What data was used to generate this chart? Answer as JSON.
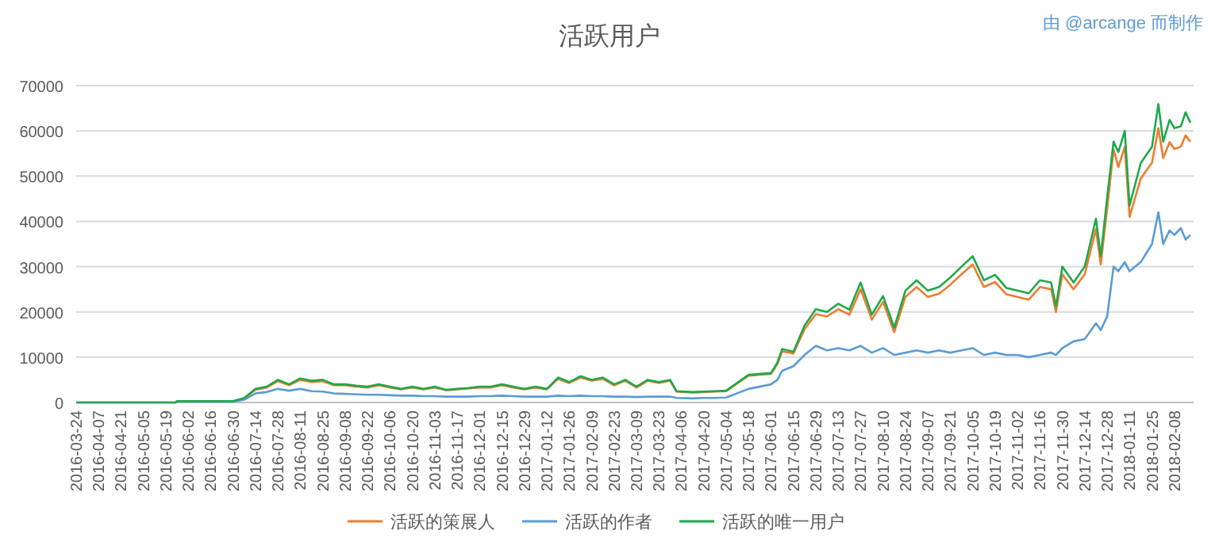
{
  "chart_data": {
    "type": "line",
    "title": "活跃用户",
    "annotations": [
      "由 @arcange 而制作"
    ],
    "x": [
      "2016-03-24",
      "2016-05-25",
      "2016-05-26",
      "2016-06-30",
      "2016-07-07",
      "2016-07-14",
      "2016-07-21",
      "2016-07-28",
      "2016-08-04",
      "2016-08-11",
      "2016-08-18",
      "2016-08-25",
      "2016-09-01",
      "2016-09-08",
      "2016-09-15",
      "2016-09-22",
      "2016-09-29",
      "2016-10-06",
      "2016-10-13",
      "2016-10-20",
      "2016-10-27",
      "2016-11-03",
      "2016-11-10",
      "2016-11-17",
      "2016-11-24",
      "2016-12-01",
      "2016-12-08",
      "2016-12-15",
      "2016-12-22",
      "2016-12-29",
      "2017-01-05",
      "2017-01-12",
      "2017-01-19",
      "2017-01-26",
      "2017-02-02",
      "2017-02-09",
      "2017-02-16",
      "2017-02-23",
      "2017-03-02",
      "2017-03-09",
      "2017-03-16",
      "2017-03-23",
      "2017-03-30",
      "2017-04-03",
      "2017-04-13",
      "2017-04-20",
      "2017-04-27",
      "2017-05-04",
      "2017-05-18",
      "2017-06-01",
      "2017-06-05",
      "2017-06-08",
      "2017-06-15",
      "2017-06-22",
      "2017-06-29",
      "2017-07-06",
      "2017-07-13",
      "2017-07-20",
      "2017-07-27",
      "2017-08-03",
      "2017-08-10",
      "2017-08-17",
      "2017-08-24",
      "2017-08-31",
      "2017-09-07",
      "2017-09-14",
      "2017-09-21",
      "2017-09-28",
      "2017-10-05",
      "2017-10-12",
      "2017-10-19",
      "2017-10-26",
      "2017-11-02",
      "2017-11-09",
      "2017-11-16",
      "2017-11-23",
      "2017-11-26",
      "2017-11-30",
      "2017-12-07",
      "2017-12-14",
      "2017-12-21",
      "2017-12-24",
      "2017-12-28",
      "2018-01-01",
      "2018-01-04",
      "2018-01-08",
      "2018-01-11",
      "2018-01-18",
      "2018-01-25",
      "2018-01-29",
      "2018-02-01",
      "2018-02-05",
      "2018-02-08",
      "2018-02-12",
      "2018-02-15",
      "2018-02-18"
    ],
    "series": [
      {
        "name": "活跃的策展人",
        "color": "#ed7d31",
        "values": [
          null,
          null,
          null,
          null,
          900,
          2800,
          3300,
          4700,
          3800,
          5000,
          4500,
          4700,
          3800,
          3800,
          3500,
          3300,
          3800,
          3300,
          2900,
          3300,
          2900,
          3300,
          2700,
          2900,
          3100,
          3300,
          3300,
          3800,
          3300,
          2900,
          3300,
          2900,
          5200,
          4300,
          5500,
          4800,
          5200,
          3800,
          4800,
          3300,
          4800,
          4300,
          4800,
          2400,
          2200,
          2300,
          2400,
          2500,
          5900,
          6300,
          8500,
          11300,
          10800,
          16200,
          19500,
          19000,
          20600,
          19400,
          25000,
          18300,
          22200,
          15500,
          23300,
          25500,
          23300,
          24000,
          26000,
          28300,
          30500,
          25500,
          26600,
          23900,
          23300,
          22700,
          25500,
          25000,
          20000,
          28300,
          25000,
          28300,
          38300,
          30500,
          42800,
          55900,
          52000,
          56500,
          41000,
          49500,
          53000,
          60600,
          54000,
          57500,
          56000,
          56500,
          59000,
          57600
        ]
      },
      {
        "name": "活跃的作者",
        "color": "#5b9bd5",
        "values": [
          0,
          0,
          200,
          200,
          600,
          2000,
          2300,
          3000,
          2600,
          3000,
          2500,
          2400,
          2000,
          1900,
          1800,
          1700,
          1700,
          1600,
          1500,
          1500,
          1400,
          1400,
          1300,
          1300,
          1300,
          1400,
          1400,
          1500,
          1400,
          1300,
          1300,
          1300,
          1500,
          1400,
          1500,
          1400,
          1400,
          1300,
          1300,
          1200,
          1300,
          1300,
          1300,
          1000,
          900,
          1000,
          1000,
          1100,
          3000,
          4000,
          5000,
          7000,
          8000,
          10500,
          12500,
          11500,
          12000,
          11500,
          12500,
          11000,
          12000,
          10500,
          11000,
          11500,
          11000,
          11500,
          11000,
          11500,
          12000,
          10500,
          11000,
          10500,
          10500,
          10000,
          10500,
          11000,
          10500,
          12000,
          13500,
          14000,
          17500,
          16000,
          19000,
          30000,
          29000,
          31000,
          29000,
          31000,
          35000,
          42000,
          35000,
          38000,
          37000,
          38500,
          36000,
          37000
        ]
      },
      {
        "name": "活跃的唯一用户",
        "color": "#1fa84a",
        "values": [
          0,
          0,
          300,
          300,
          1000,
          3000,
          3500,
          5000,
          4000,
          5300,
          4800,
          5000,
          4000,
          4000,
          3700,
          3500,
          4000,
          3500,
          3000,
          3500,
          3000,
          3500,
          2800,
          3000,
          3200,
          3500,
          3500,
          4000,
          3500,
          3000,
          3500,
          3000,
          5500,
          4500,
          5800,
          5000,
          5500,
          4000,
          5000,
          3500,
          5000,
          4500,
          5000,
          2500,
          2300,
          2400,
          2500,
          2600,
          6100,
          6500,
          8800,
          11800,
          11200,
          17000,
          20600,
          20000,
          21800,
          20500,
          26500,
          19400,
          23500,
          16500,
          24700,
          27000,
          24700,
          25500,
          27600,
          30000,
          32300,
          27000,
          28200,
          25300,
          24700,
          24100,
          27000,
          26500,
          21200,
          30000,
          26500,
          30000,
          40600,
          32300,
          45300,
          57600,
          55300,
          60000,
          43500,
          52900,
          56500,
          65900,
          57600,
          62400,
          60600,
          61000,
          64100,
          61800
        ]
      }
    ],
    "xlim": [
      "2016-03-24",
      "2018-02-20"
    ],
    "xticks": [
      "2016-03-24",
      "2016-04-07",
      "2016-04-21",
      "2016-05-05",
      "2016-05-19",
      "2016-06-02",
      "2016-06-16",
      "2016-06-30",
      "2016-07-14",
      "2016-07-28",
      "2016-08-11",
      "2016-08-25",
      "2016-09-08",
      "2016-09-22",
      "2016-10-06",
      "2016-10-20",
      "2016-11-03",
      "2016-11-17",
      "2016-12-01",
      "2016-12-15",
      "2016-12-29",
      "2017-01-12",
      "2017-01-26",
      "2017-02-09",
      "2017-02-23",
      "2017-03-09",
      "2017-03-23",
      "2017-04-06",
      "2017-04-20",
      "2017-05-04",
      "2017-05-18",
      "2017-06-01",
      "2017-06-15",
      "2017-06-29",
      "2017-07-13",
      "2017-07-27",
      "2017-08-10",
      "2017-08-24",
      "2017-09-07",
      "2017-09-21",
      "2017-10-05",
      "2017-10-19",
      "2017-11-02",
      "2017-11-16",
      "2017-11-30",
      "2017-12-14",
      "2017-12-28",
      "2018-01-11",
      "2018-01-25",
      "2018-02-08"
    ],
    "ylim": [
      0,
      70000
    ],
    "yticks": [
      0,
      10000,
      20000,
      30000,
      40000,
      50000,
      60000,
      70000
    ],
    "grid": "y",
    "legend": "bottom"
  }
}
